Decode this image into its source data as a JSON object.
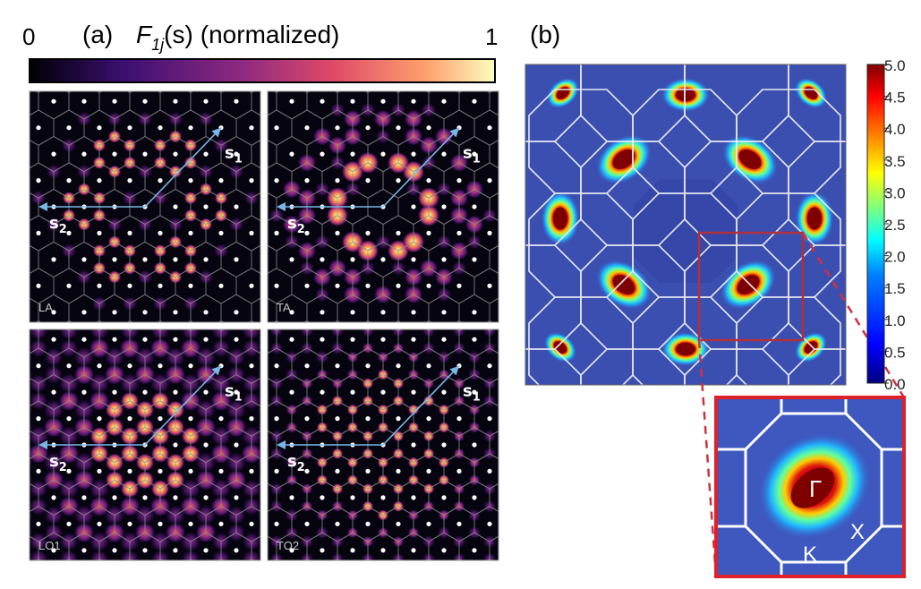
{
  "panel_a": {
    "label": "(a)",
    "cbar_min": "0",
    "cbar_max": "1",
    "cbar_title_main": "F",
    "cbar_title_sub": "1j",
    "cbar_title_arg": "(s)",
    "cbar_title_suffix": "(normalized)",
    "colormap": [
      "#000004",
      "#3b0f70",
      "#8c2981",
      "#de4968",
      "#fe9f6d",
      "#fcfdbf"
    ],
    "vec1_main": "s",
    "vec1_sub": "1",
    "vec2_main": "s",
    "vec2_sub": "2",
    "subpanels": [
      {
        "mode": "LA",
        "tag": "LA"
      },
      {
        "mode": "TA",
        "tag": "TA"
      },
      {
        "mode": "LO1",
        "tag": "LO1"
      },
      {
        "mode": "TO2",
        "tag": "TO2"
      }
    ]
  },
  "panel_b": {
    "label": "(b)",
    "colorbar_ticks": [
      "5.0",
      "4.5",
      "4.0",
      "3.5",
      "3.0",
      "2.5",
      "2.0",
      "1.5",
      "1.0",
      "0.5",
      "0.0"
    ],
    "colormap": [
      "#00007f",
      "#0000ff",
      "#007fff",
      "#00ffff",
      "#7fff7f",
      "#ffff00",
      "#ff7f00",
      "#ff0000",
      "#7f0000"
    ],
    "inset_labels": {
      "gamma": "Γ",
      "k": "K",
      "x": "X"
    }
  },
  "colors": {
    "map_background": "#3b4fb0",
    "zoom_box": "#b0303c",
    "inset_border": "#e02028",
    "arrow": "#7ab7e6",
    "lattice_line": "#8a8a8a"
  }
}
